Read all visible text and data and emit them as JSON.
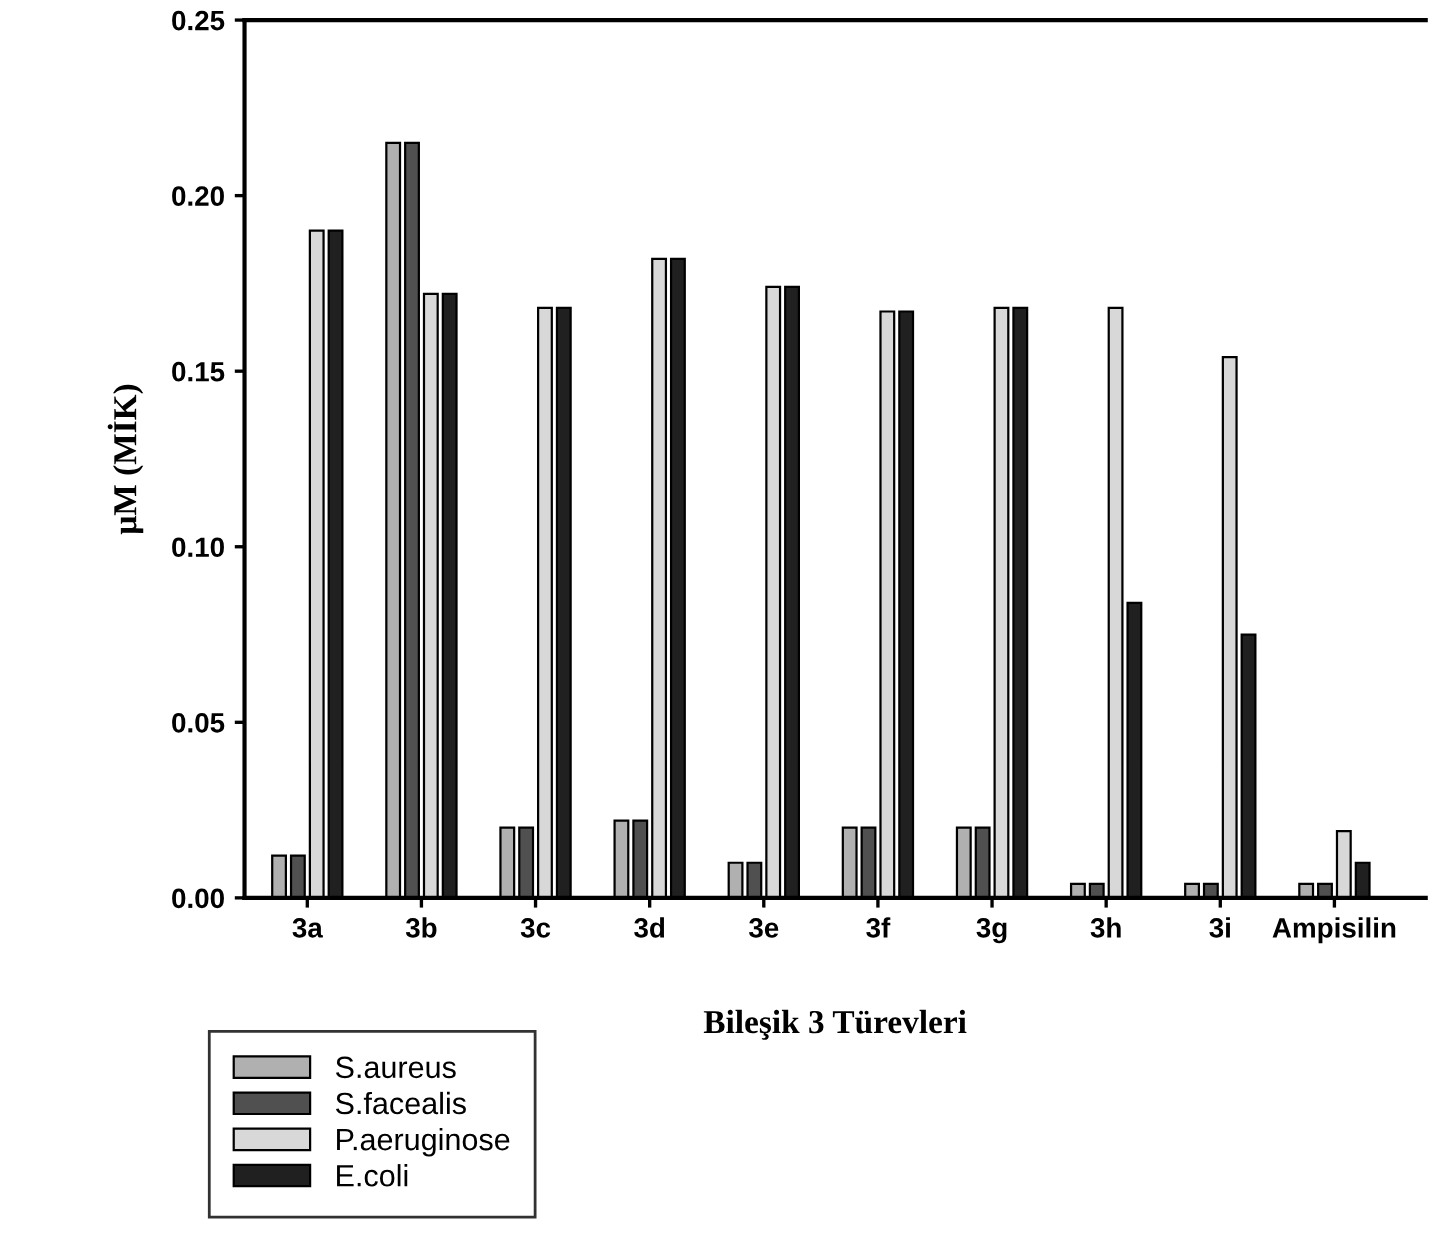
{
  "chart_data": {
    "type": "bar",
    "xlabel": "Bileşik 3 Türevleri",
    "ylabel": "μM (MİK)",
    "categories": [
      "3a",
      "3b",
      "3c",
      "3d",
      "3e",
      "3f",
      "3g",
      "3h",
      "3i",
      "Ampisilin"
    ],
    "series": [
      {
        "name": "S.aureus",
        "color": "#b0b0b0",
        "values": [
          0.012,
          0.215,
          0.02,
          0.022,
          0.01,
          0.02,
          0.02,
          0.004,
          0.004,
          0.004
        ]
      },
      {
        "name": "S.facealis",
        "color": "#505050",
        "values": [
          0.012,
          0.215,
          0.02,
          0.022,
          0.01,
          0.02,
          0.02,
          0.004,
          0.004,
          0.004
        ]
      },
      {
        "name": "P.aeruginose",
        "color": "#d8d8d8",
        "values": [
          0.19,
          0.172,
          0.168,
          0.182,
          0.174,
          0.167,
          0.168,
          0.168,
          0.154,
          0.019
        ]
      },
      {
        "name": "E.coli",
        "color": "#202020",
        "values": [
          0.19,
          0.172,
          0.168,
          0.182,
          0.174,
          0.167,
          0.168,
          0.084,
          0.075,
          0.01
        ]
      }
    ],
    "ylim": [
      0,
      0.25
    ],
    "yticks": [
      {
        "value": 0,
        "label": "0.00"
      },
      {
        "value": 0.05,
        "label": "0.05"
      },
      {
        "value": 0.1,
        "label": "0.10"
      },
      {
        "value": 0.15,
        "label": "0.15"
      },
      {
        "value": 0.2,
        "label": "0.20"
      },
      {
        "value": 0.25,
        "label": "0.25"
      }
    ],
    "grid": false,
    "legend": "bottom left"
  }
}
